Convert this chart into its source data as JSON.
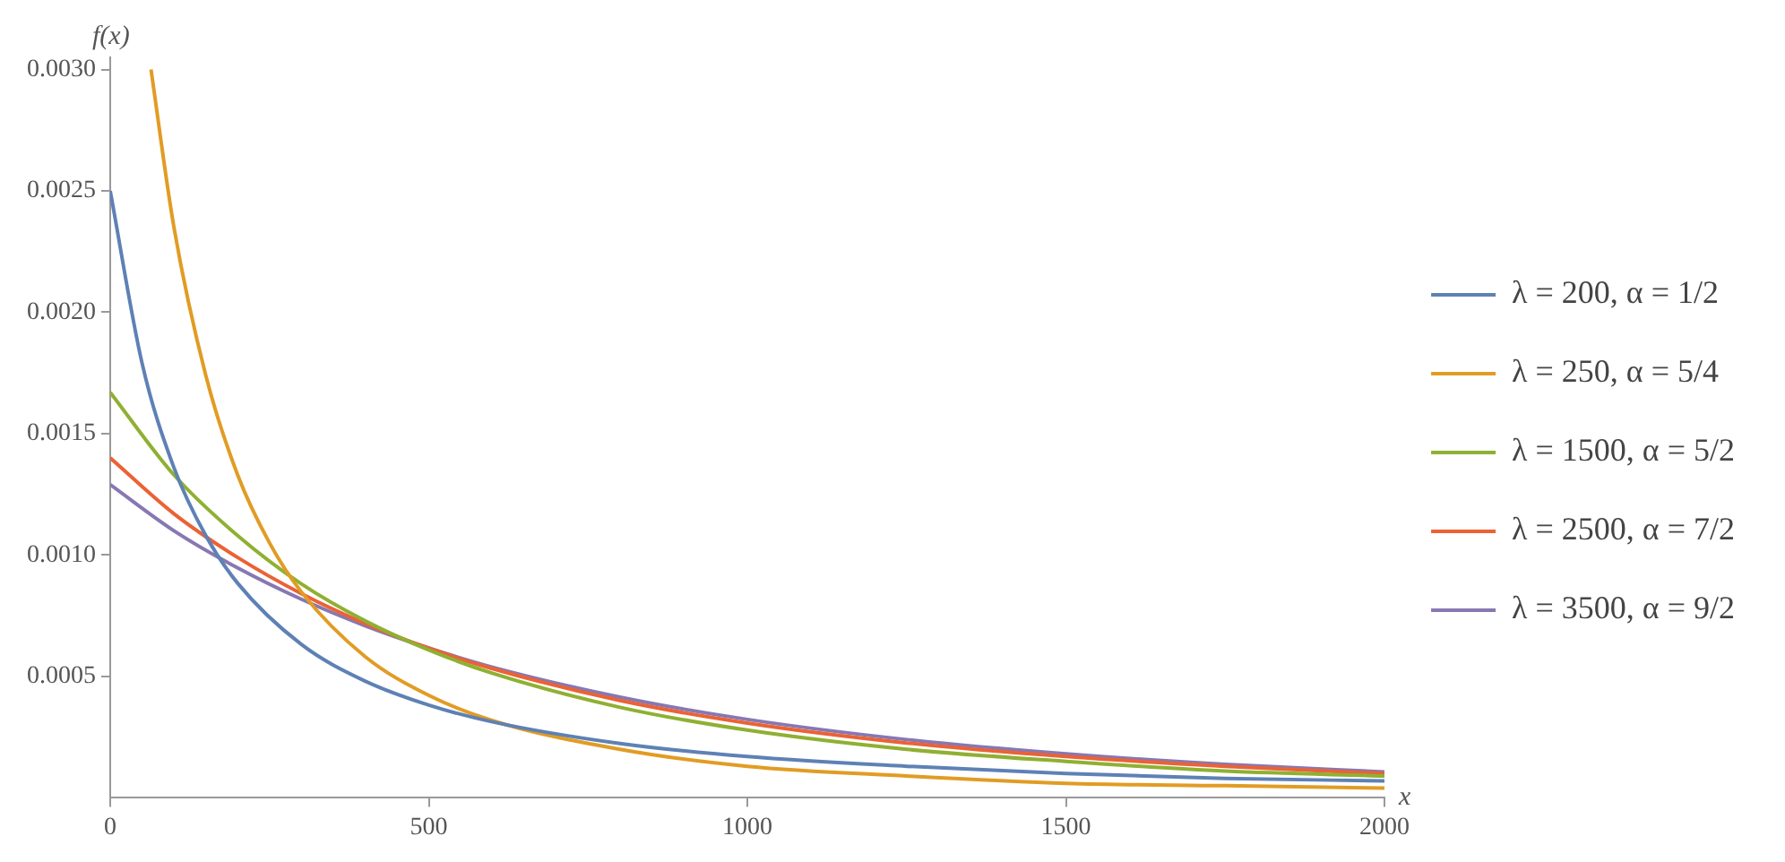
{
  "chart_data": {
    "type": "line",
    "xlabel": "x",
    "ylabel": "f(x)",
    "xlim": [
      0,
      2000
    ],
    "xticks": [
      0,
      500,
      1000,
      1500,
      2000
    ],
    "ylim": [
      0,
      0.00305
    ],
    "yticks": [
      {
        "value": 0.0005,
        "label": "0.0005"
      },
      {
        "value": 0.001,
        "label": "0.0010"
      },
      {
        "value": 0.0015,
        "label": "0.0015"
      },
      {
        "value": 0.002,
        "label": "0.0020"
      },
      {
        "value": 0.0025,
        "label": "0.0025"
      },
      {
        "value": 0.003,
        "label": "0.0030"
      }
    ],
    "grid": false,
    "legend": "right",
    "marker": "none",
    "line_style": "solid",
    "series": [
      {
        "name": "λ = 200, α = 1/2",
        "color": "#5e81b5",
        "x": [
          0,
          50,
          100,
          150,
          200,
          300,
          400,
          500,
          600,
          800,
          1000,
          1250,
          1500,
          1750,
          2000
        ],
        "values": [
          0.0025,
          0.00179,
          0.00136,
          0.00108,
          0.000884,
          0.000632,
          0.000481,
          0.000382,
          0.000313,
          0.000224,
          0.00017,
          0.00013,
          0.0001,
          8e-05,
          7e-05
        ]
      },
      {
        "name": "λ = 250, α = 5/4",
        "color": "#e19c24",
        "x": [
          64,
          100,
          150,
          200,
          250,
          300,
          400,
          500,
          600,
          800,
          1000,
          1250,
          1500,
          1750,
          2000
        ],
        "values": [
          0.003,
          0.00235,
          0.00174,
          0.00133,
          0.00105,
          0.000848,
          0.000582,
          0.000422,
          0.000318,
          0.0002,
          0.00013,
          9e-05,
          6e-05,
          5e-05,
          4e-05
        ]
      },
      {
        "name": "λ = 1500, α = 5/2",
        "color": "#8fb032",
        "x": [
          0,
          100,
          200,
          300,
          400,
          500,
          600,
          800,
          1000,
          1250,
          1500,
          1750,
          2000
        ],
        "values": [
          0.00167,
          0.00133,
          0.00108,
          0.000881,
          0.000729,
          0.000609,
          0.000513,
          0.000373,
          0.000279,
          0.0002,
          0.00015,
          0.00011,
          9e-05
        ]
      },
      {
        "name": "λ = 2500, α = 7/2",
        "color": "#eb6235",
        "x": [
          0,
          100,
          200,
          300,
          400,
          500,
          600,
          800,
          1000,
          1250,
          1500,
          1750,
          2000
        ],
        "values": [
          0.0014,
          0.00117,
          0.00099,
          0.000841,
          0.000718,
          0.000616,
          0.000532,
          0.000401,
          0.000308,
          0.000226,
          0.00017,
          0.00013,
          0.0001
        ]
      },
      {
        "name": "λ = 3500, α = 9/2",
        "color": "#8778b3",
        "x": [
          0,
          100,
          200,
          300,
          400,
          500,
          600,
          800,
          1000,
          1250,
          1500,
          1750,
          2000
        ],
        "values": [
          0.00129,
          0.0011,
          0.000947,
          0.000818,
          0.000709,
          0.000617,
          0.000538,
          0.000415,
          0.000323,
          0.00024,
          0.000181,
          0.000138,
          0.000107
        ]
      }
    ]
  }
}
